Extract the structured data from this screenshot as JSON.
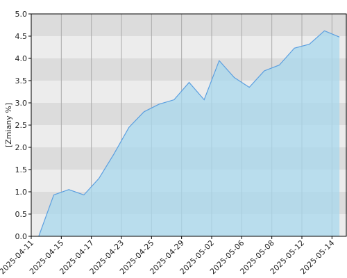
{
  "chart_data": {
    "type": "area",
    "y_label": "[Zmiany %]",
    "values": [
      0,
      0.93,
      1.05,
      0.93,
      1.3,
      1.85,
      2.45,
      2.8,
      2.97,
      3.07,
      3.46,
      3.07,
      3.95,
      3.57,
      3.35,
      3.72,
      3.85,
      4.23,
      4.32,
      4.62,
      4.48
    ],
    "xticks": [
      "2025-04-11",
      "2025-04-15",
      "2025-04-17",
      "2025-04-23",
      "2025-04-25",
      "2025-04-29",
      "2025-05-02",
      "2025-05-06",
      "2025-05-08",
      "2025-05-12",
      "2025-05-14"
    ],
    "ylim": [
      0,
      5
    ],
    "yticks": [
      {
        "value": 0,
        "label": "0.0"
      },
      0.5,
      {
        "value": 1,
        "label": "1.0"
      },
      1.5,
      {
        "value": 2,
        "label": "2.0"
      },
      2.5,
      {
        "value": 3,
        "label": "3.0"
      },
      3.5,
      {
        "value": 4,
        "label": "4.0"
      },
      4.5,
      {
        "value": 5,
        "label": "5.0"
      }
    ],
    "color": "#5b9fe0",
    "fill": "#a8d8ee",
    "grid": true
  }
}
